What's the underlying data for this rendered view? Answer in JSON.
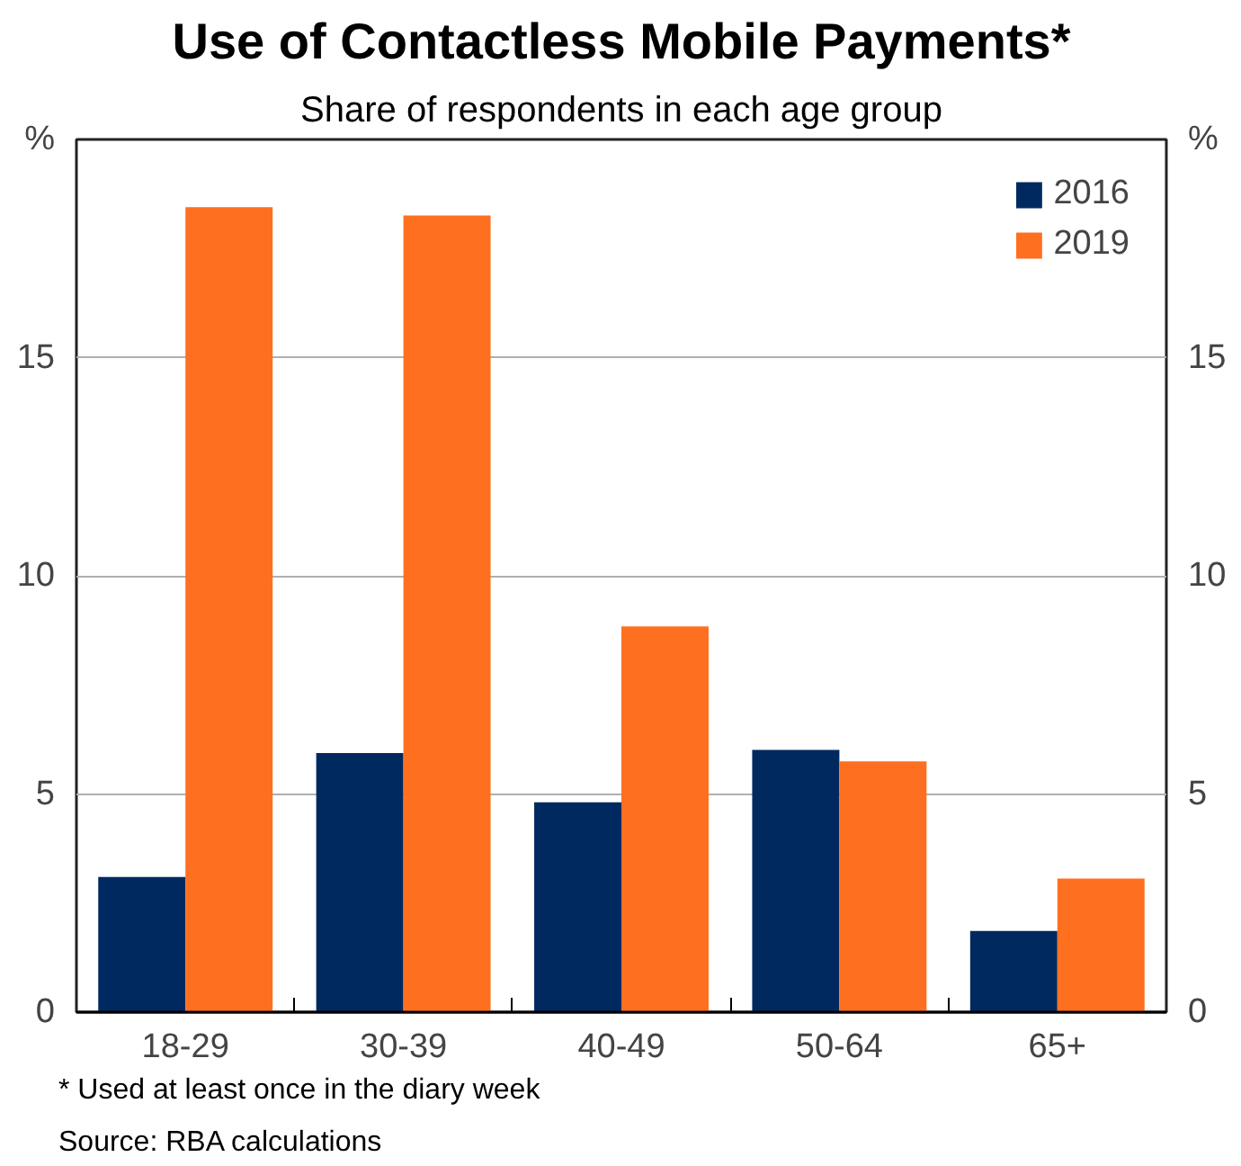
{
  "chart_data": {
    "type": "bar",
    "title": "Use of Contactless Mobile Payments*",
    "subtitle": "Share of respondents in each age group",
    "ylabel": "%",
    "y2label": "%",
    "categories": [
      "18-29",
      "30-39",
      "40-49",
      "50-64",
      "65+"
    ],
    "series": [
      {
        "name": "2016",
        "color": "#002960",
        "values": [
          3.1,
          5.94,
          4.81,
          6.01,
          1.86
        ]
      },
      {
        "name": "2019",
        "color": "#ff6f20",
        "values": [
          18.45,
          18.26,
          8.84,
          5.75,
          3.06
        ]
      }
    ],
    "ylim": [
      0,
      20
    ],
    "yticks": [
      0,
      5,
      10,
      15
    ],
    "y2lim": [
      0,
      20
    ],
    "y2ticks": [
      0,
      5,
      10,
      15
    ],
    "grid": "y",
    "legend": "top right",
    "annotations": [
      "*      Used at least once in the diary week",
      "Source:  RBA calculations"
    ]
  }
}
